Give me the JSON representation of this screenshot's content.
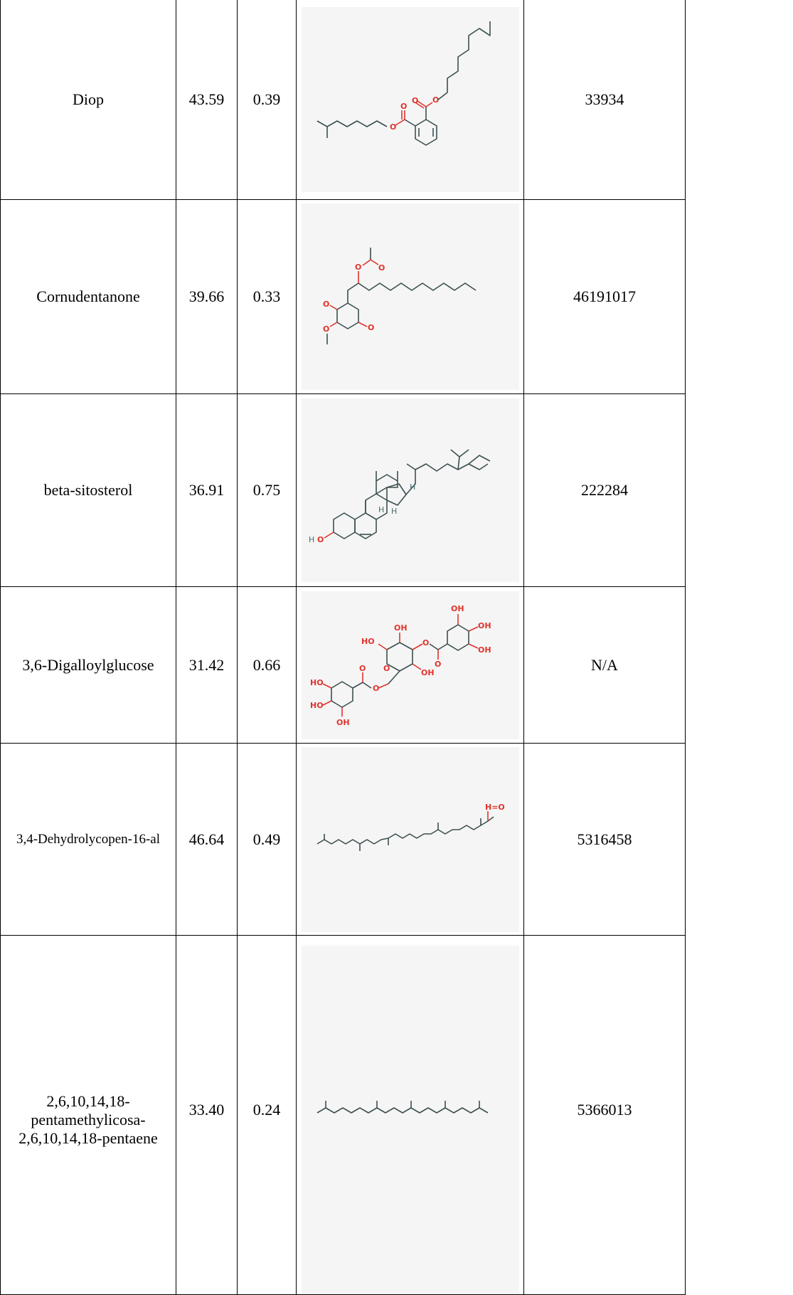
{
  "rows": [
    {
      "name": "Diop",
      "value1": "43.59",
      "value2": "0.39",
      "structure": "diop-structure",
      "cid": "33934"
    },
    {
      "name": "Cornudentanone",
      "value1": "39.66",
      "value2": "0.33",
      "structure": "cornudentanone-structure",
      "cid": "46191017"
    },
    {
      "name": "beta-sitosterol",
      "value1": "36.91",
      "value2": "0.75",
      "structure": "beta-sitosterol-structure",
      "cid": "222284"
    },
    {
      "name": "3,6-Digalloylglucose",
      "value1": "31.42",
      "value2": "0.66",
      "structure": "digalloylglucose-structure",
      "cid": "N/A"
    },
    {
      "name": "3,4-Dehydrolycopen-16-al",
      "value1": "46.64",
      "value2": "0.49",
      "structure": "dehydrolycopenal-structure",
      "cid": "5316458"
    },
    {
      "name": "2,6,10,14,18-pentamethylicosa-2,6,10,14,18-pentaene",
      "value1": "33.40",
      "value2": "0.24",
      "structure": "pentamethylicosapentaene-structure",
      "cid": "5366013"
    }
  ],
  "atom_labels": {
    "oxygen": "O",
    "hydrogen": "H",
    "hydroxyl": "OH",
    "hydroxyl_left": "HO",
    "aldehyde": "H=O"
  }
}
